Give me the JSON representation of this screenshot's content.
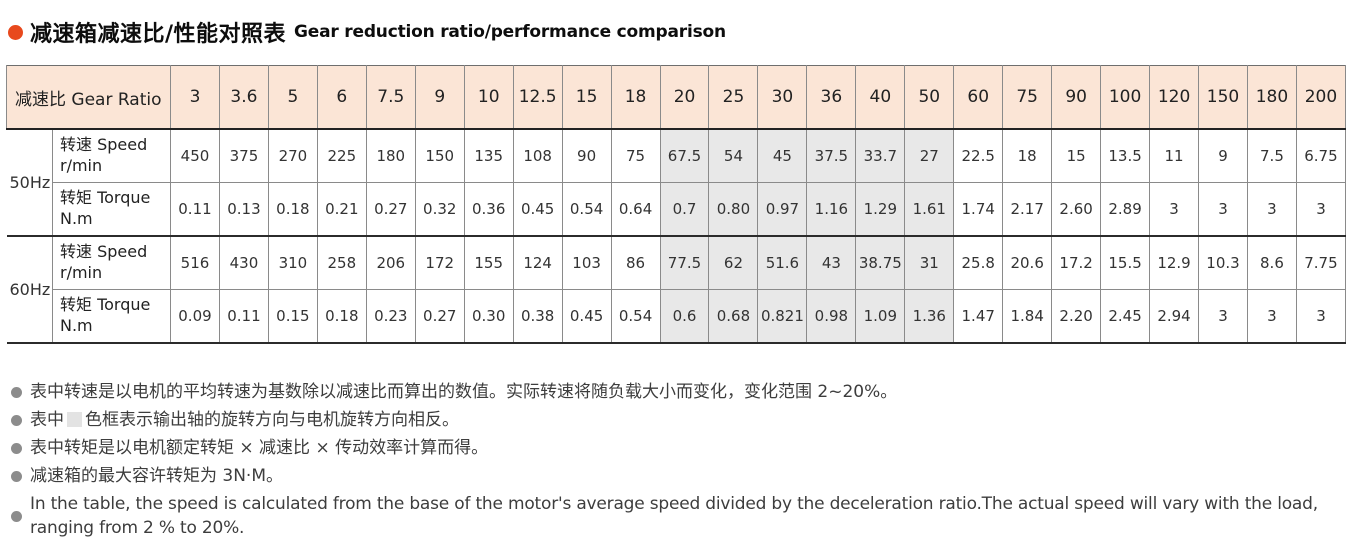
{
  "title": {
    "zh": "减速箱减速比/性能对照表",
    "en": "Gear reduction ratio/performance comparison"
  },
  "colors": {
    "title_bullet": "#e8491d",
    "header_bg": "#fbe5d6",
    "highlight_bg": "#e8e8e8",
    "note_bullet": "#8c8c8c"
  },
  "table": {
    "header_label": "减速比 Gear Ratio",
    "ratios": [
      "3",
      "3.6",
      "5",
      "6",
      "7.5",
      "9",
      "10",
      "12.5",
      "15",
      "18",
      "20",
      "25",
      "30",
      "36",
      "40",
      "50",
      "60",
      "75",
      "90",
      "100",
      "120",
      "150",
      "180",
      "200"
    ],
    "highlight_columns": [
      10,
      11,
      12,
      13,
      14,
      15
    ],
    "groups": [
      {
        "freq": "50Hz",
        "rows": [
          {
            "label": "转速 Speed",
            "unit": "r/min",
            "values": [
              "450",
              "375",
              "270",
              "225",
              "180",
              "150",
              "135",
              "108",
              "90",
              "75",
              "67.5",
              "54",
              "45",
              "37.5",
              "33.7",
              "27",
              "22.5",
              "18",
              "15",
              "13.5",
              "11",
              "9",
              "7.5",
              "6.75"
            ]
          },
          {
            "label": "转矩 Torque",
            "unit": "N.m",
            "values": [
              "0.11",
              "0.13",
              "0.18",
              "0.21",
              "0.27",
              "0.32",
              "0.36",
              "0.45",
              "0.54",
              "0.64",
              "0.7",
              "0.80",
              "0.97",
              "1.16",
              "1.29",
              "1.61",
              "1.74",
              "2.17",
              "2.60",
              "2.89",
              "3",
              "3",
              "3",
              "3"
            ]
          }
        ]
      },
      {
        "freq": "60Hz",
        "rows": [
          {
            "label": "转速 Speed",
            "unit": "r/min",
            "values": [
              "516",
              "430",
              "310",
              "258",
              "206",
              "172",
              "155",
              "124",
              "103",
              "86",
              "77.5",
              "62",
              "51.6",
              "43",
              "38.75",
              "31",
              "25.8",
              "20.6",
              "17.2",
              "15.5",
              "12.9",
              "10.3",
              "8.6",
              "7.75"
            ]
          },
          {
            "label": "转矩 Torque",
            "unit": "N.m",
            "values": [
              "0.09",
              "0.11",
              "0.15",
              "0.18",
              "0.23",
              "0.27",
              "0.30",
              "0.38",
              "0.45",
              "0.54",
              "0.6",
              "0.68",
              "0.821",
              "0.98",
              "1.09",
              "1.36",
              "1.47",
              "1.84",
              "2.20",
              "2.45",
              "2.94",
              "3",
              "3",
              "3"
            ]
          }
        ]
      }
    ]
  },
  "notes": [
    {
      "text": "表中转速是以电机的平均转速为基数除以减速比而算出的数值。实际转速将随负载大小而变化，变化范围 2~20%。"
    },
    {
      "prefix": "表中",
      "swatch": true,
      "text": "色框表示输出轴的旋转方向与电机旋转方向相反。"
    },
    {
      "text": "表中转矩是以电机额定转矩 × 减速比 × 传动效率计算而得。"
    },
    {
      "text": "减速箱的最大容许转矩为 3N·M。"
    },
    {
      "text": "In the table, the speed is calculated from the base of the motor's average speed divided by the deceleration ratio.The actual speed will vary with the load, ranging from 2 % to 20%.",
      "lang": "en"
    }
  ]
}
